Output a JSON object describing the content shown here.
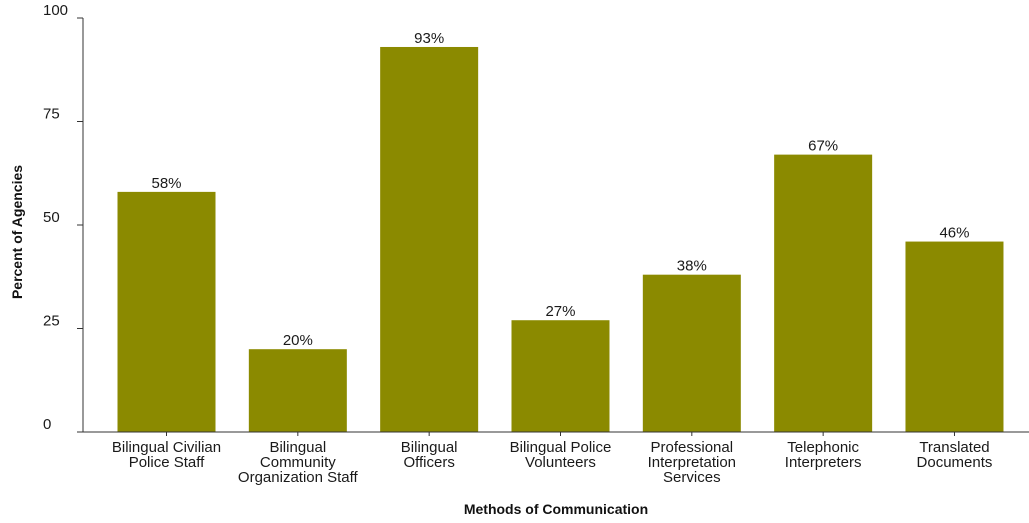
{
  "chart_data": {
    "type": "bar",
    "title": "",
    "xlabel": "Methods of Communication",
    "ylabel": "Percent of Agencies",
    "ylim": [
      0,
      100
    ],
    "yticks": [
      0,
      25,
      50,
      75,
      100
    ],
    "grid": false,
    "bar_color": "#8b8a00",
    "categories": [
      [
        "Bilingual Civilian",
        "Police Staff"
      ],
      [
        "Bilingual",
        "Community",
        "Organization Staff"
      ],
      [
        "Bilingual",
        "Officers"
      ],
      [
        "Bilingual Police",
        "Volunteers"
      ],
      [
        "Professional",
        "Interpretation",
        "Services"
      ],
      [
        "Telephonic",
        "Interpreters"
      ],
      [
        "Translated",
        "Documents"
      ]
    ],
    "values": [
      58,
      20,
      93,
      27,
      38,
      67,
      46
    ],
    "data_labels": [
      "58%",
      "20%",
      "93%",
      "27%",
      "38%",
      "67%",
      "46%"
    ]
  }
}
